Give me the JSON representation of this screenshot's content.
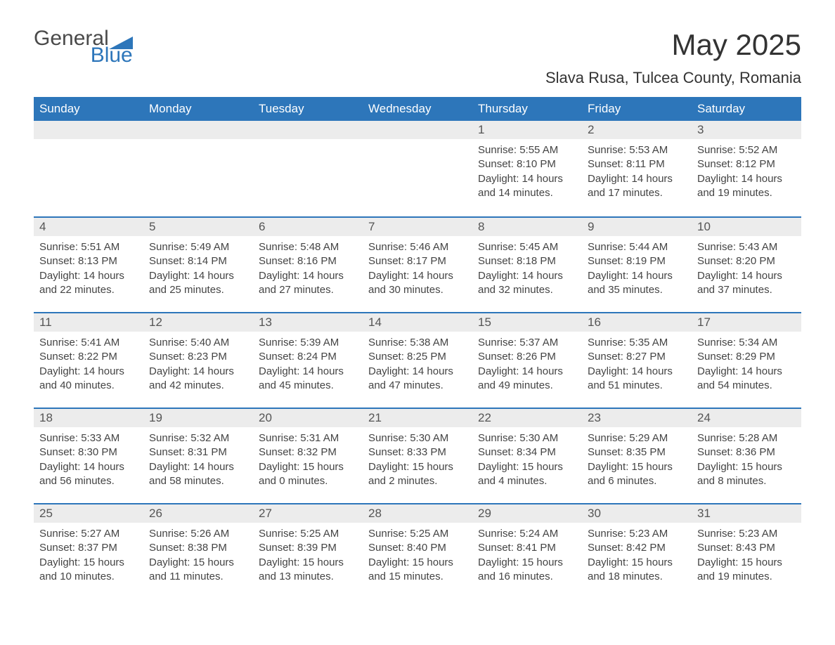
{
  "brand": {
    "word1": "General",
    "word2": "Blue",
    "icon_color": "#2d76ba",
    "text1_color": "#4a4a4a",
    "text2_color": "#2d76ba"
  },
  "title": "May 2025",
  "location": "Slava Rusa, Tulcea County, Romania",
  "colors": {
    "header_bg": "#2d76ba",
    "header_text": "#ffffff",
    "daynum_bg": "#ececec",
    "week_border": "#2d76ba",
    "body_text": "#444444",
    "title_text": "#333333"
  },
  "days_of_week": [
    "Sunday",
    "Monday",
    "Tuesday",
    "Wednesday",
    "Thursday",
    "Friday",
    "Saturday"
  ],
  "weeks": [
    [
      null,
      null,
      null,
      null,
      {
        "n": "1",
        "sunrise": "5:55 AM",
        "sunset": "8:10 PM",
        "daylight": "14 hours and 14 minutes."
      },
      {
        "n": "2",
        "sunrise": "5:53 AM",
        "sunset": "8:11 PM",
        "daylight": "14 hours and 17 minutes."
      },
      {
        "n": "3",
        "sunrise": "5:52 AM",
        "sunset": "8:12 PM",
        "daylight": "14 hours and 19 minutes."
      }
    ],
    [
      {
        "n": "4",
        "sunrise": "5:51 AM",
        "sunset": "8:13 PM",
        "daylight": "14 hours and 22 minutes."
      },
      {
        "n": "5",
        "sunrise": "5:49 AM",
        "sunset": "8:14 PM",
        "daylight": "14 hours and 25 minutes."
      },
      {
        "n": "6",
        "sunrise": "5:48 AM",
        "sunset": "8:16 PM",
        "daylight": "14 hours and 27 minutes."
      },
      {
        "n": "7",
        "sunrise": "5:46 AM",
        "sunset": "8:17 PM",
        "daylight": "14 hours and 30 minutes."
      },
      {
        "n": "8",
        "sunrise": "5:45 AM",
        "sunset": "8:18 PM",
        "daylight": "14 hours and 32 minutes."
      },
      {
        "n": "9",
        "sunrise": "5:44 AM",
        "sunset": "8:19 PM",
        "daylight": "14 hours and 35 minutes."
      },
      {
        "n": "10",
        "sunrise": "5:43 AM",
        "sunset": "8:20 PM",
        "daylight": "14 hours and 37 minutes."
      }
    ],
    [
      {
        "n": "11",
        "sunrise": "5:41 AM",
        "sunset": "8:22 PM",
        "daylight": "14 hours and 40 minutes."
      },
      {
        "n": "12",
        "sunrise": "5:40 AM",
        "sunset": "8:23 PM",
        "daylight": "14 hours and 42 minutes."
      },
      {
        "n": "13",
        "sunrise": "5:39 AM",
        "sunset": "8:24 PM",
        "daylight": "14 hours and 45 minutes."
      },
      {
        "n": "14",
        "sunrise": "5:38 AM",
        "sunset": "8:25 PM",
        "daylight": "14 hours and 47 minutes."
      },
      {
        "n": "15",
        "sunrise": "5:37 AM",
        "sunset": "8:26 PM",
        "daylight": "14 hours and 49 minutes."
      },
      {
        "n": "16",
        "sunrise": "5:35 AM",
        "sunset": "8:27 PM",
        "daylight": "14 hours and 51 minutes."
      },
      {
        "n": "17",
        "sunrise": "5:34 AM",
        "sunset": "8:29 PM",
        "daylight": "14 hours and 54 minutes."
      }
    ],
    [
      {
        "n": "18",
        "sunrise": "5:33 AM",
        "sunset": "8:30 PM",
        "daylight": "14 hours and 56 minutes."
      },
      {
        "n": "19",
        "sunrise": "5:32 AM",
        "sunset": "8:31 PM",
        "daylight": "14 hours and 58 minutes."
      },
      {
        "n": "20",
        "sunrise": "5:31 AM",
        "sunset": "8:32 PM",
        "daylight": "15 hours and 0 minutes."
      },
      {
        "n": "21",
        "sunrise": "5:30 AM",
        "sunset": "8:33 PM",
        "daylight": "15 hours and 2 minutes."
      },
      {
        "n": "22",
        "sunrise": "5:30 AM",
        "sunset": "8:34 PM",
        "daylight": "15 hours and 4 minutes."
      },
      {
        "n": "23",
        "sunrise": "5:29 AM",
        "sunset": "8:35 PM",
        "daylight": "15 hours and 6 minutes."
      },
      {
        "n": "24",
        "sunrise": "5:28 AM",
        "sunset": "8:36 PM",
        "daylight": "15 hours and 8 minutes."
      }
    ],
    [
      {
        "n": "25",
        "sunrise": "5:27 AM",
        "sunset": "8:37 PM",
        "daylight": "15 hours and 10 minutes."
      },
      {
        "n": "26",
        "sunrise": "5:26 AM",
        "sunset": "8:38 PM",
        "daylight": "15 hours and 11 minutes."
      },
      {
        "n": "27",
        "sunrise": "5:25 AM",
        "sunset": "8:39 PM",
        "daylight": "15 hours and 13 minutes."
      },
      {
        "n": "28",
        "sunrise": "5:25 AM",
        "sunset": "8:40 PM",
        "daylight": "15 hours and 15 minutes."
      },
      {
        "n": "29",
        "sunrise": "5:24 AM",
        "sunset": "8:41 PM",
        "daylight": "15 hours and 16 minutes."
      },
      {
        "n": "30",
        "sunrise": "5:23 AM",
        "sunset": "8:42 PM",
        "daylight": "15 hours and 18 minutes."
      },
      {
        "n": "31",
        "sunrise": "5:23 AM",
        "sunset": "8:43 PM",
        "daylight": "15 hours and 19 minutes."
      }
    ]
  ],
  "labels": {
    "sunrise": "Sunrise: ",
    "sunset": "Sunset: ",
    "daylight": "Daylight: "
  }
}
